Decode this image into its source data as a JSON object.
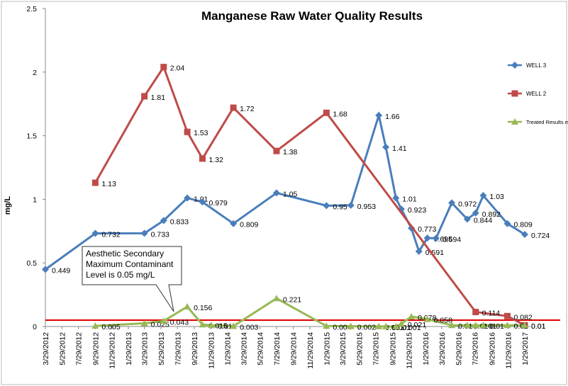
{
  "chart_data": {
    "type": "line",
    "title": "Manganese Raw Water Quality Results",
    "y_label": "mg/L",
    "xlim": [
      "3/29/2012",
      "1/29/2017"
    ],
    "xticks": [
      "3/29/2012",
      "5/29/2012",
      "7/29/2012",
      "9/29/2012",
      "11/29/2012",
      "1/29/2013",
      "3/29/2013",
      "5/29/2013",
      "7/29/2013",
      "9/29/2013",
      "11/29/2013",
      "1/29/2014",
      "3/29/2014",
      "5/29/2014",
      "7/29/2014",
      "9/29/2014",
      "11/29/2014",
      "1/29/2015",
      "3/29/2015",
      "5/29/2015",
      "7/29/2015",
      "9/29/2015",
      "11/29/2015",
      "1/29/2016",
      "3/29/2016",
      "5/29/2016",
      "7/29/2016",
      "9/29/2016",
      "11/29/2016",
      "1/29/2017"
    ],
    "ylim": [
      0,
      2.5
    ],
    "yticks": [
      0,
      0.5,
      1,
      1.5,
      2,
      2.5
    ],
    "grid": false,
    "legend": "right",
    "reference_line": {
      "value": 0.05,
      "color": "#e00000"
    },
    "annotation": [
      "Aesthetic Secondary",
      "Maximum Contaminant",
      "Level is 0.05 mg/L"
    ],
    "series": [
      {
        "name": "WELL 3",
        "color": "#4a7ebb",
        "marker": "diamond",
        "x": [
          "3/29/2012",
          "9/29/2012",
          "3/29/2013",
          "6/8/2013",
          "9/3/2013",
          "10/29/2013",
          "2/20/2014",
          "7/29/2014",
          "1/29/2015",
          "4/29/2015",
          "8/10/2015",
          "9/5/2015",
          "10/12/2015",
          "11/1/2015",
          "12/8/2015",
          "1/5/2016",
          "2/5/2016",
          "3/8/2016",
          "5/5/2016",
          "7/1/2016",
          "8/1/2016",
          "8/29/2016",
          "11/26/2016",
          "1/29/2017"
        ],
        "values": [
          0.449,
          0.732,
          0.733,
          0.833,
          1.01,
          0.979,
          0.809,
          1.05,
          0.95,
          0.953,
          1.66,
          1.41,
          1.01,
          0.923,
          0.773,
          0.591,
          0.695,
          0.694,
          0.972,
          0.844,
          0.892,
          1.03,
          0.809,
          0.724
        ]
      },
      {
        "name": "WELL 2",
        "color": "#be4b48",
        "marker": "square",
        "x": [
          "9/29/2012",
          "3/29/2013",
          "6/8/2013",
          "9/3/2013",
          "10/29/2013",
          "2/20/2014",
          "7/29/2014",
          "1/29/2015",
          "8/1/2016",
          "11/26/2016",
          "1/29/2017"
        ],
        "values": [
          1.13,
          1.81,
          2.04,
          1.53,
          1.32,
          1.72,
          1.38,
          1.68,
          0.114,
          0.082,
          0.01
        ]
      },
      {
        "name": "Treated Results mg/L",
        "color": "#98b954",
        "marker": "triangle",
        "x": [
          "9/29/2012",
          "3/29/2013",
          "6/8/2013",
          "9/3/2013",
          "10/29/2013",
          "12/1/2013",
          "2/20/2014",
          "7/29/2014",
          "1/29/2015",
          "4/29/2015",
          "8/10/2015",
          "9/5/2015",
          "10/12/2015",
          "11/1/2015",
          "12/8/2015",
          "2/5/2016",
          "5/5/2016",
          "7/1/2016",
          "8/1/2016",
          "8/29/2016",
          "11/26/2016",
          "1/29/2017"
        ],
        "values": [
          0.005,
          0.025,
          0.043,
          0.156,
          0.015,
          0.01,
          0.003,
          0.221,
          0.004,
          0.002,
          0.001,
          0.001,
          0.001,
          0.021,
          0.078,
          0.058,
          0.01,
          0.01,
          0.01,
          0.01,
          0.01,
          0.01
        ]
      }
    ]
  }
}
